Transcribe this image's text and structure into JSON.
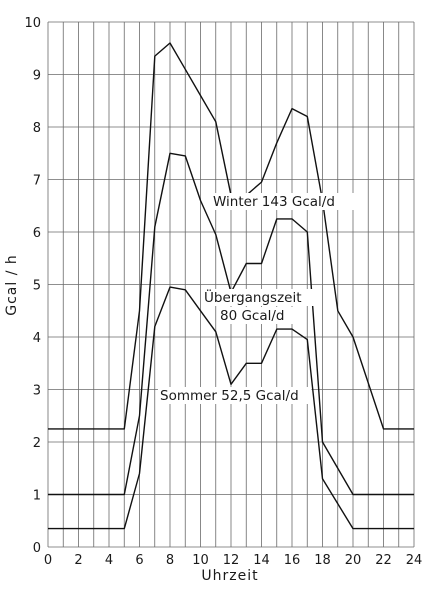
{
  "chart_data": {
    "type": "line",
    "xlabel": "Uhrzeit",
    "ylabel": "Gcal / h",
    "xlim": [
      0,
      24
    ],
    "ylim": [
      0,
      10
    ],
    "xticks": [
      0,
      2,
      4,
      6,
      8,
      10,
      12,
      14,
      16,
      18,
      20,
      22,
      24
    ],
    "yticks": [
      0,
      1,
      2,
      3,
      4,
      5,
      6,
      7,
      8,
      9,
      10
    ],
    "grid": true,
    "series": [
      {
        "name": "Winter 143 Gcal/d",
        "x": [
          0,
          5,
          6,
          7,
          8,
          9,
          10,
          11,
          12,
          13,
          14,
          15,
          16,
          17,
          18,
          19,
          20,
          22,
          24
        ],
        "y": [
          2.25,
          2.25,
          4.5,
          9.35,
          9.6,
          9.1,
          8.6,
          8.1,
          6.7,
          6.7,
          6.95,
          7.7,
          8.35,
          8.2,
          6.6,
          4.5,
          4.0,
          2.25,
          2.25
        ]
      },
      {
        "name": "Übergangszeit 80 Gcal/d",
        "x": [
          0,
          5,
          6,
          7,
          8,
          9,
          10,
          11,
          12,
          13,
          14,
          15,
          16,
          17,
          18,
          20,
          22,
          24
        ],
        "y": [
          1.0,
          1.0,
          2.5,
          6.1,
          7.5,
          7.45,
          6.6,
          5.95,
          4.85,
          5.4,
          5.4,
          6.25,
          6.25,
          6.0,
          2.0,
          1.0,
          1.0,
          1.0
        ]
      },
      {
        "name": "Sommer 52,5 Gcal/d",
        "x": [
          0,
          5,
          6,
          7,
          8,
          9,
          10,
          11,
          12,
          13,
          14,
          15,
          16,
          17,
          18,
          20,
          22,
          24
        ],
        "y": [
          0.35,
          0.35,
          1.4,
          4.2,
          4.95,
          4.9,
          4.5,
          4.1,
          3.1,
          3.5,
          3.5,
          4.15,
          4.15,
          3.95,
          1.3,
          0.35,
          0.35,
          0.35
        ]
      }
    ],
    "annotations": [
      {
        "id": "winter",
        "lines": [
          "Winter 143 Gcal/d"
        ]
      },
      {
        "id": "uebergang",
        "lines": [
          "Übergangszeit",
          "80 Gcal/d"
        ]
      },
      {
        "id": "sommer",
        "lines": [
          "Sommer 52,5 Gcal/d"
        ]
      }
    ]
  }
}
